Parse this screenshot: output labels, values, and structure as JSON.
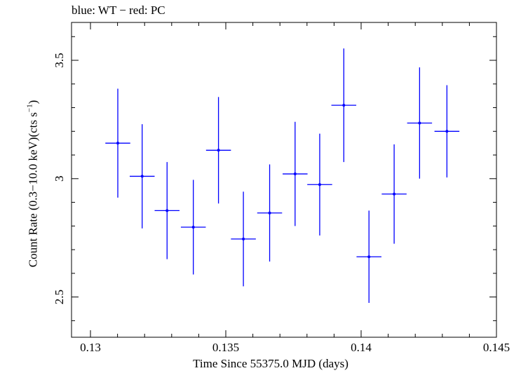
{
  "chart_data": {
    "type": "scatter",
    "title": "blue: WT − red: PC",
    "xlabel": "Time Since 55375.0 MJD (days)",
    "ylabel": {
      "main": "Count Rate (0.3−10.0 keV)(cts s",
      "sup": "−1",
      "end": ")"
    },
    "xlim": [
      0.1293,
      0.145
    ],
    "ylim": [
      2.33,
      3.66
    ],
    "x_ticks": [
      {
        "value": 0.13,
        "label": "0.13"
      },
      {
        "value": 0.135,
        "label": "0.135"
      },
      {
        "value": 0.14,
        "label": "0.14"
      },
      {
        "value": 0.145,
        "label": "0.145"
      }
    ],
    "y_ticks": [
      {
        "value": 2.5,
        "label": "2.5"
      },
      {
        "value": 3.0,
        "label": "3"
      },
      {
        "value": 3.5,
        "label": "3.5"
      }
    ],
    "x_minor_step": 0.001,
    "y_minor_step": 0.1,
    "grid": false,
    "series": [
      {
        "color": "#0000ff",
        "points": [
          {
            "x": 0.13101,
            "xerr": 0.00046,
            "y": 3.15,
            "yerr": 0.23
          },
          {
            "x": 0.13191,
            "xerr": 0.00046,
            "y": 3.01,
            "yerr": 0.22
          },
          {
            "x": 0.13283,
            "xerr": 0.00046,
            "y": 2.865,
            "yerr": 0.205
          },
          {
            "x": 0.1338,
            "xerr": 0.00046,
            "y": 2.795,
            "yerr": 0.2
          },
          {
            "x": 0.13473,
            "xerr": 0.00046,
            "y": 3.12,
            "yerr": 0.225
          },
          {
            "x": 0.13565,
            "xerr": 0.00046,
            "y": 2.745,
            "yerr": 0.2
          },
          {
            "x": 0.13662,
            "xerr": 0.00046,
            "y": 2.855,
            "yerr": 0.205
          },
          {
            "x": 0.13756,
            "xerr": 0.00046,
            "y": 3.02,
            "yerr": 0.22
          },
          {
            "x": 0.13847,
            "xerr": 0.00046,
            "y": 2.975,
            "yerr": 0.215
          },
          {
            "x": 0.13936,
            "xerr": 0.00046,
            "y": 3.31,
            "yerr": 0.24
          },
          {
            "x": 0.14029,
            "xerr": 0.00046,
            "y": 2.67,
            "yerr": 0.195
          },
          {
            "x": 0.14122,
            "xerr": 0.00046,
            "y": 2.935,
            "yerr": 0.21
          },
          {
            "x": 0.14216,
            "xerr": 0.00046,
            "y": 3.235,
            "yerr": 0.235
          },
          {
            "x": 0.14317,
            "xerr": 0.00046,
            "y": 3.2,
            "yerr": 0.195
          }
        ]
      }
    ]
  }
}
